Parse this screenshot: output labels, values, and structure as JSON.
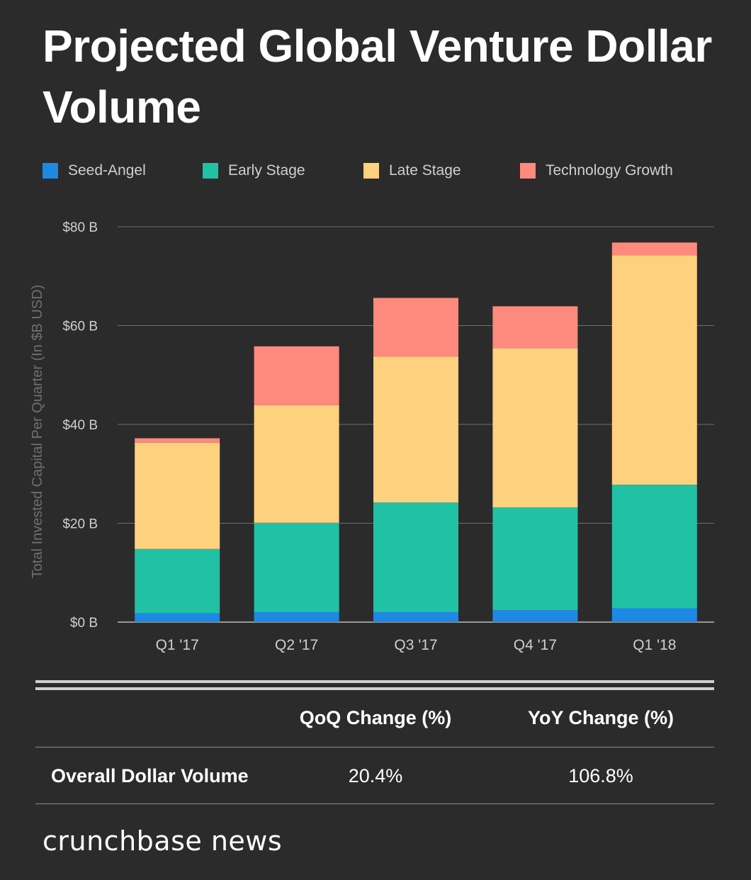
{
  "title": "Projected Global Venture Dollar Volume",
  "legend": [
    {
      "label": "Seed-Angel",
      "color": "#1e88e5"
    },
    {
      "label": "Early Stage",
      "color": "#21c1a6"
    },
    {
      "label": "Late Stage",
      "color": "#fed17e"
    },
    {
      "label": "Technology Growth",
      "color": "#fd8a7d"
    }
  ],
  "chart_data": {
    "type": "bar",
    "stacked": true,
    "title": "Projected Global Venture Dollar Volume",
    "xlabel": "",
    "ylabel": "Total Invested Capital Per Quarter (In $B USD)",
    "categories": [
      "Q1 '17",
      "Q2 '17",
      "Q3 '17",
      "Q4 '17",
      "Q1 '18"
    ],
    "ylim": [
      0,
      80
    ],
    "yticks": [
      0,
      20,
      40,
      60,
      80
    ],
    "ytick_labels": [
      "$0 B",
      "$20 B",
      "$40 B",
      "$60 B",
      "$80 B"
    ],
    "legend_position": "top",
    "grid": true,
    "series": [
      {
        "name": "Seed-Angel",
        "color": "#1e88e5",
        "values": [
          1.8,
          2.0,
          2.0,
          2.4,
          2.8
        ]
      },
      {
        "name": "Early Stage",
        "color": "#21c1a6",
        "values": [
          13.0,
          18.1,
          22.2,
          20.8,
          25.0
        ]
      },
      {
        "name": "Late Stage",
        "color": "#fed17e",
        "values": [
          21.5,
          23.8,
          29.5,
          32.2,
          46.4
        ]
      },
      {
        "name": "Technology Growth",
        "color": "#fd8a7d",
        "values": [
          0.9,
          11.9,
          11.9,
          8.5,
          2.6
        ]
      }
    ]
  },
  "table": {
    "headers": [
      "QoQ Change (%)",
      "YoY Change (%)"
    ],
    "row_label": "Overall Dollar Volume",
    "values": [
      "20.4%",
      "106.8%"
    ]
  },
  "brand": "crunchbase news"
}
